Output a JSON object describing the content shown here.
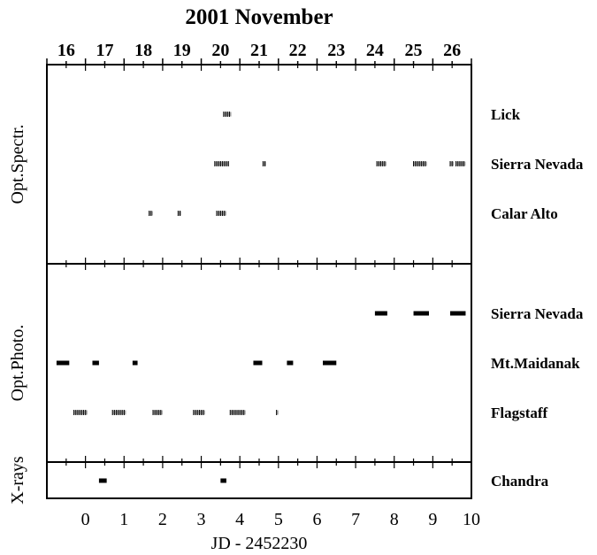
{
  "chart_data": {
    "type": "scatter",
    "title": "2001 November",
    "xlabel": "JD - 2452230",
    "xlim": [
      -1,
      10
    ],
    "x_ticks": [
      "0",
      "1",
      "2",
      "3",
      "4",
      "5",
      "6",
      "7",
      "8",
      "9",
      "10"
    ],
    "top_axis_labels": [
      "16",
      "17",
      "18",
      "19",
      "20",
      "21",
      "22",
      "23",
      "24",
      "25",
      "26"
    ],
    "grid": false,
    "legend": "none",
    "colors": {
      "axis": "#000000",
      "marks": "#000000"
    },
    "panels": [
      {
        "label": "Opt.Spectr.",
        "rows": [
          {
            "name": "Lick",
            "mark": "tick",
            "intervals": [
              [
                3.58,
                3.78
              ]
            ]
          },
          {
            "name": "Sierra Nevada",
            "mark": "tick",
            "intervals": [
              [
                3.35,
                3.72
              ],
              [
                4.6,
                4.68
              ],
              [
                7.55,
                7.8
              ],
              [
                8.5,
                8.85
              ],
              [
                9.45,
                9.55
              ],
              [
                9.6,
                9.85
              ]
            ]
          },
          {
            "name": "Calar Alto",
            "mark": "tick",
            "intervals": [
              [
                1.65,
                1.75
              ],
              [
                2.4,
                2.48
              ],
              [
                3.4,
                3.65
              ]
            ]
          }
        ]
      },
      {
        "label": "Opt.Photo.",
        "rows": [
          {
            "name": "Sierra Nevada",
            "mark": "bar",
            "intervals": [
              [
                7.5,
                7.82
              ],
              [
                8.5,
                8.9
              ],
              [
                9.45,
                9.85
              ]
            ]
          },
          {
            "name": "Mt.Maidanak",
            "mark": "bar",
            "intervals": [
              [
                -0.75,
                -0.42
              ],
              [
                0.18,
                0.35
              ],
              [
                1.22,
                1.35
              ],
              [
                4.35,
                4.58
              ],
              [
                5.22,
                5.38
              ],
              [
                6.15,
                6.5
              ]
            ]
          },
          {
            "name": "Flagstaff",
            "mark": "tick",
            "intervals": [
              [
                -0.3,
                0.05
              ],
              [
                0.7,
                1.05
              ],
              [
                1.75,
                2.0
              ],
              [
                2.8,
                3.1
              ],
              [
                3.75,
                4.15
              ],
              [
                4.95,
                5.0
              ]
            ]
          }
        ]
      },
      {
        "label": "X-rays",
        "rows": [
          {
            "name": "Chandra",
            "mark": "bar",
            "intervals": [
              [
                0.35,
                0.55
              ],
              [
                3.5,
                3.65
              ]
            ]
          }
        ]
      }
    ]
  }
}
